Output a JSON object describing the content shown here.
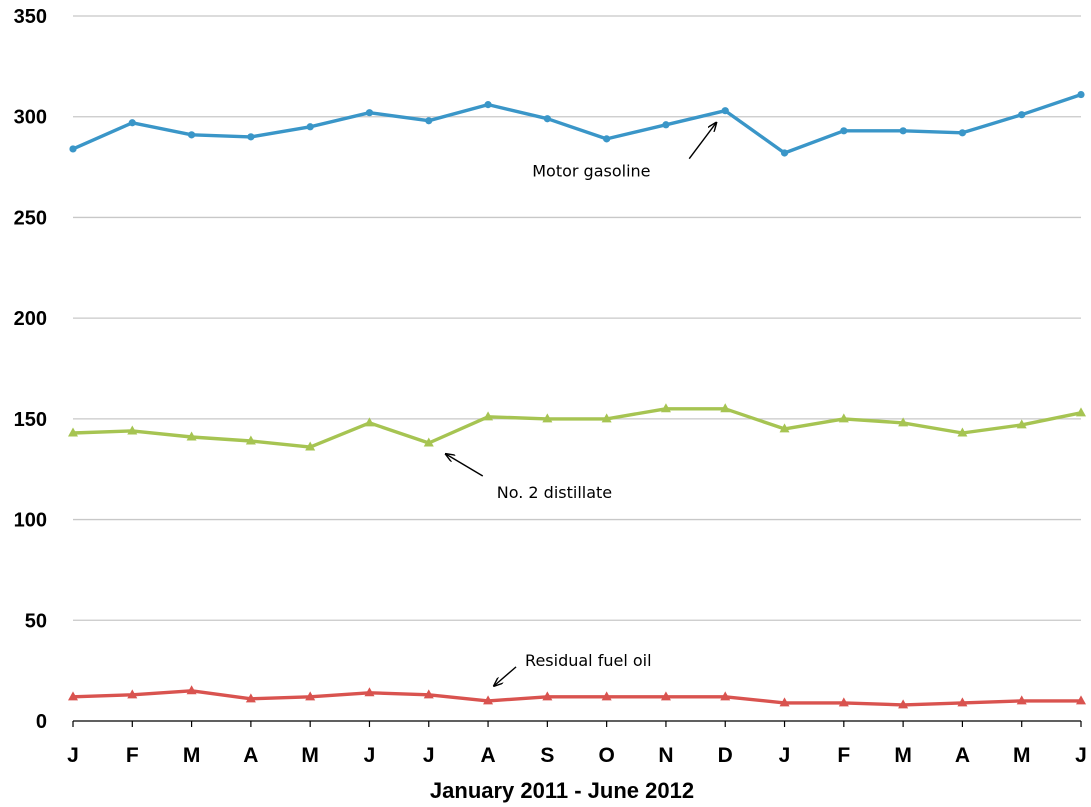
{
  "chart_data": {
    "type": "line",
    "title": "",
    "xlabel": "January 2011 - June 2012",
    "ylabel": "",
    "ylim": [
      0,
      350
    ],
    "yticks": [
      0,
      50,
      100,
      150,
      200,
      250,
      300,
      350
    ],
    "grid": true,
    "categories": [
      "J",
      "F",
      "M",
      "A",
      "M",
      "J",
      "J",
      "A",
      "S",
      "O",
      "N",
      "D",
      "J",
      "F",
      "M",
      "A",
      "M",
      "J"
    ],
    "series": [
      {
        "key": "gasoline",
        "color": "#3a96c8",
        "marker": "circle",
        "values": [
          284,
          297,
          291,
          290,
          295,
          302,
          298,
          306,
          299,
          289,
          296,
          303,
          282,
          293,
          293,
          292,
          301,
          311
        ]
      },
      {
        "key": "distillate",
        "color": "#a6c452",
        "marker": "triangle",
        "values": [
          143,
          144,
          141,
          139,
          136,
          148,
          138,
          151,
          150,
          150,
          155,
          155,
          145,
          150,
          148,
          143,
          147,
          153
        ]
      },
      {
        "key": "residual",
        "color": "#d9534f",
        "marker": "triangle",
        "values": [
          12,
          13,
          15,
          11,
          12,
          14,
          13,
          10,
          12,
          12,
          12,
          12,
          9,
          9,
          8,
          9,
          10,
          10
        ]
      }
    ],
    "annotations": [
      {
        "text": "Motor gasoline",
        "series": "gasoline",
        "point_index": 11,
        "placement": "below-left"
      },
      {
        "text": "No. 2 distillate",
        "series": "distillate",
        "point_index": 6,
        "placement": "below-right"
      },
      {
        "text": "Residual fuel oil",
        "series": "residual",
        "point_index": 7,
        "placement": "above-right"
      }
    ]
  }
}
